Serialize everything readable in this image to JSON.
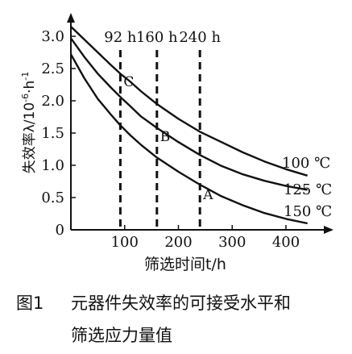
{
  "chart_data": {
    "type": "line",
    "xlabel": "筛选时间t/h",
    "ylabel": "失效率λ/10",
    "ylabel_sup": "-6",
    "ylabel_unit": "·h",
    "ylabel_unit_sup": "-1",
    "xlim": [
      0,
      450
    ],
    "ylim": [
      0,
      3.2
    ],
    "x_ticks": [
      100,
      200,
      300,
      400
    ],
    "y_ticks": [
      0,
      0.5,
      1.0,
      1.5,
      2.0,
      2.5,
      3.0
    ],
    "y_tick_labels": [
      "0",
      "0.5",
      "1.0",
      "1.5",
      "2.0",
      "2.5",
      "3.0"
    ],
    "grid": false,
    "series": [
      {
        "name": "100 ℃",
        "x": [
          0,
          25,
          50,
          75,
          92,
          110,
          130,
          160,
          200,
          240,
          280,
          320,
          360,
          400,
          440
        ],
        "y": [
          3.15,
          2.95,
          2.75,
          2.55,
          2.42,
          2.3,
          2.15,
          1.95,
          1.72,
          1.52,
          1.36,
          1.2,
          1.06,
          0.94,
          0.84
        ]
      },
      {
        "name": "125 ℃",
        "x": [
          0,
          25,
          50,
          75,
          92,
          110,
          130,
          160,
          200,
          240,
          280,
          320,
          360,
          400,
          440
        ],
        "y": [
          2.97,
          2.68,
          2.42,
          2.2,
          2.06,
          1.92,
          1.76,
          1.58,
          1.36,
          1.16,
          0.99,
          0.86,
          0.76,
          0.68,
          0.62
        ]
      },
      {
        "name": "150 ℃",
        "x": [
          0,
          25,
          50,
          75,
          92,
          110,
          130,
          160,
          200,
          240,
          280,
          320,
          360,
          400,
          440
        ],
        "y": [
          2.72,
          2.35,
          2.03,
          1.78,
          1.62,
          1.47,
          1.32,
          1.12,
          0.9,
          0.7,
          0.52,
          0.38,
          0.26,
          0.17,
          0.1
        ]
      }
    ],
    "vlines": [
      {
        "x": 92,
        "label": "92 h"
      },
      {
        "x": 160,
        "label": "160 h"
      },
      {
        "x": 240,
        "label": "240 h"
      }
    ],
    "points": [
      {
        "label": "C",
        "x": 92,
        "y": 2.3
      },
      {
        "label": "B",
        "x": 160,
        "y": 1.45
      },
      {
        "label": "A",
        "x": 240,
        "y": 0.55
      }
    ]
  },
  "caption": {
    "number": "图1",
    "line1": "元器件失效率的可接受水平和",
    "line2": "筛选应力量值"
  }
}
